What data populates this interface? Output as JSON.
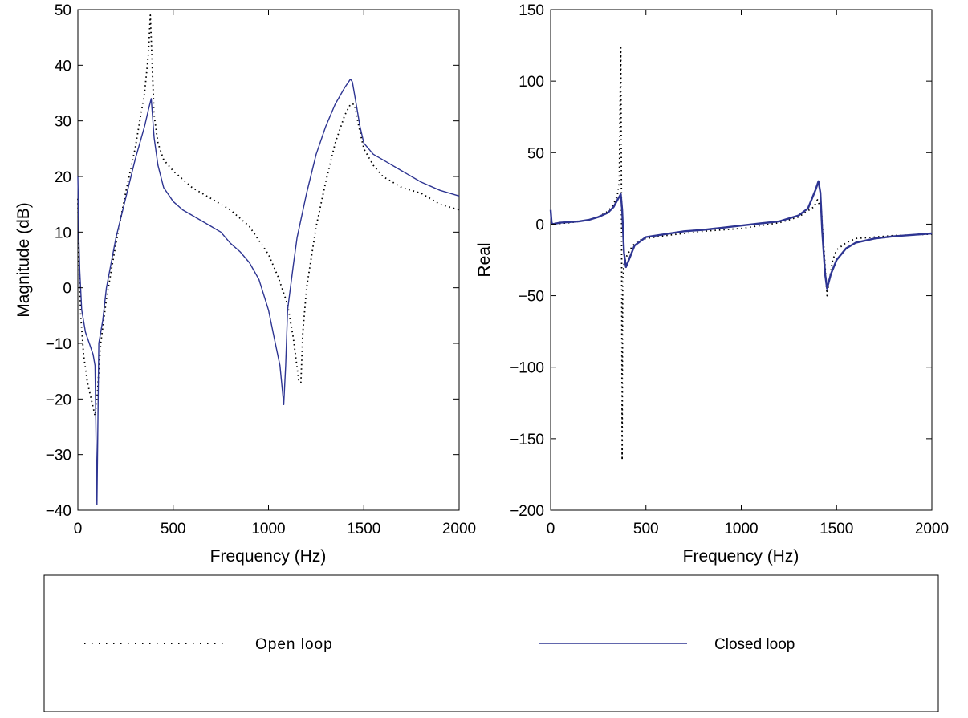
{
  "chart_data": [
    {
      "type": "line",
      "xlabel": "Frequency (Hz)",
      "ylabel": "Magnitude (dB)",
      "xlim": [
        0,
        2000
      ],
      "ylim": [
        -40,
        50
      ],
      "xticks": [
        0,
        500,
        1000,
        1500,
        2000
      ],
      "yticks": [
        -40,
        -30,
        -20,
        -10,
        0,
        10,
        20,
        30,
        40,
        50
      ],
      "xtick_labels": [
        "0",
        "500",
        "1000",
        "1500",
        "2000"
      ],
      "ytick_labels": [
        "−40",
        "−30",
        "−20",
        "−10",
        "0",
        "10",
        "20",
        "30",
        "40",
        "50"
      ],
      "grid": false,
      "series": [
        {
          "name": "Open loop",
          "style": "dotted",
          "color": "#000000",
          "x": [
            0,
            5,
            15,
            30,
            50,
            70,
            90,
            100,
            120,
            150,
            200,
            250,
            300,
            350,
            370,
            380,
            390,
            400,
            420,
            450,
            500,
            550,
            600,
            700,
            800,
            900,
            1000,
            1050,
            1100,
            1130,
            1160,
            1170,
            1180,
            1200,
            1250,
            1300,
            1350,
            1400,
            1430,
            1450,
            1480,
            1500,
            1550,
            1600,
            1700,
            1800,
            1900,
            2000
          ],
          "y": [
            16,
            5,
            -5,
            -12,
            -17,
            -20,
            -23,
            -20,
            -10,
            -2,
            8,
            17,
            25,
            35,
            42,
            49,
            40,
            31,
            26,
            23,
            21,
            19.5,
            18,
            16,
            14,
            11,
            6,
            2,
            -3,
            -9,
            -17,
            -17,
            -8,
            0,
            11,
            19,
            26,
            31,
            33,
            33,
            28,
            25,
            22,
            20,
            18,
            17,
            15,
            14
          ]
        },
        {
          "name": "Closed loop",
          "style": "solid",
          "color": "#2e3592",
          "x": [
            0,
            5,
            10,
            20,
            40,
            60,
            80,
            90,
            100,
            110,
            130,
            150,
            200,
            250,
            300,
            350,
            370,
            385,
            400,
            420,
            450,
            500,
            550,
            600,
            700,
            750,
            800,
            850,
            900,
            950,
            1000,
            1030,
            1060,
            1080,
            1090,
            1100,
            1130,
            1150,
            1200,
            1250,
            1300,
            1350,
            1400,
            1430,
            1440,
            1460,
            1480,
            1500,
            1550,
            1600,
            1700,
            1800,
            1900,
            2000
          ],
          "y": [
            20,
            9,
            3,
            -4,
            -8,
            -10,
            -12,
            -14,
            -39,
            -10,
            -6,
            0,
            9,
            16,
            23,
            29,
            32,
            34,
            27,
            22,
            18,
            15.5,
            14,
            13,
            11,
            10,
            8,
            6.5,
            4.5,
            1.5,
            -4,
            -9,
            -14,
            -21,
            -14,
            -4,
            4,
            9,
            17,
            24,
            29,
            33,
            36,
            37.5,
            37,
            33,
            29,
            26,
            24,
            23,
            21,
            19,
            17.5,
            16.5
          ]
        }
      ]
    },
    {
      "type": "line",
      "xlabel": "Frequency (Hz)",
      "ylabel": "Real",
      "xlim": [
        0,
        2000
      ],
      "ylim": [
        -200,
        150
      ],
      "xticks": [
        0,
        500,
        1000,
        1500,
        2000
      ],
      "yticks": [
        -200,
        -150,
        -100,
        -50,
        0,
        50,
        100,
        150
      ],
      "xtick_labels": [
        "0",
        "500",
        "1000",
        "1500",
        "2000"
      ],
      "ytick_labels": [
        "−200",
        "−150",
        "−100",
        "−50",
        "0",
        "50",
        "100",
        "150"
      ],
      "grid": false,
      "series": [
        {
          "name": "Open loop",
          "style": "dotted",
          "color": "#000000",
          "x": [
            0,
            50,
            100,
            150,
            200,
            250,
            300,
            330,
            350,
            360,
            368,
            372,
            375,
            378,
            385,
            400,
            430,
            470,
            500,
            600,
            800,
            1000,
            1200,
            1300,
            1380,
            1400,
            1420,
            1440,
            1450,
            1460,
            1480,
            1500,
            1550,
            1600,
            1800,
            2000
          ],
          "y": [
            0,
            0.5,
            1,
            2,
            3,
            5,
            9,
            14,
            20,
            30,
            125,
            0,
            -165,
            -40,
            -28,
            -22,
            -15,
            -11,
            -10,
            -8,
            -5,
            -3,
            1,
            5,
            12,
            17,
            10,
            -30,
            -50,
            -40,
            -25,
            -18,
            -13,
            -10,
            -8,
            -7
          ]
        },
        {
          "name": "Closed loop",
          "style": "solid",
          "color": "#2e3592",
          "x": [
            0,
            5,
            10,
            50,
            100,
            150,
            200,
            250,
            300,
            330,
            355,
            368,
            375,
            385,
            395,
            410,
            440,
            500,
            600,
            700,
            800,
            900,
            1000,
            1100,
            1200,
            1300,
            1350,
            1390,
            1405,
            1415,
            1425,
            1440,
            1450,
            1470,
            1500,
            1550,
            1600,
            1700,
            1800,
            1900,
            2000
          ],
          "y": [
            10,
            1,
            0,
            1,
            1.5,
            2,
            3,
            5,
            8,
            12,
            18,
            21,
            10,
            -20,
            -30,
            -25,
            -15,
            -9,
            -7,
            -5,
            -4,
            -2.5,
            -1,
            0.5,
            2,
            6,
            11,
            24,
            30,
            22,
            -5,
            -35,
            -45,
            -35,
            -25,
            -17,
            -13,
            -10,
            -8.5,
            -7.5,
            -6.5
          ]
        }
      ]
    }
  ],
  "legend": {
    "items": [
      {
        "label": "Open loop",
        "style": "dotted",
        "color": "#000000"
      },
      {
        "label": "Closed loop",
        "style": "solid",
        "color": "#2e3592"
      }
    ]
  }
}
